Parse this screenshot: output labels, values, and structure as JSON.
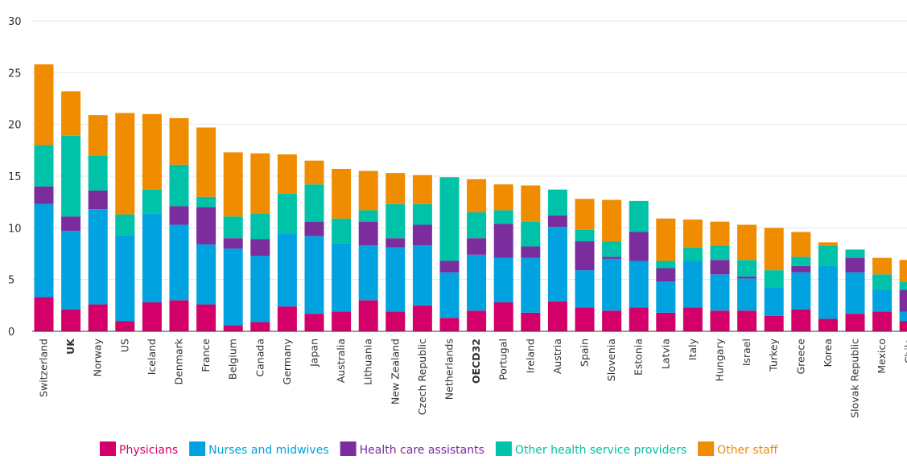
{
  "chart_data": {
    "type": "bar",
    "stacked": true,
    "ylim": [
      0,
      30
    ],
    "yticks": [
      0,
      5,
      10,
      15,
      20,
      25,
      30
    ],
    "grid": true,
    "legend_position": "bottom",
    "categories": [
      "Switzerland",
      "UK",
      "Norway",
      "US",
      "Iceland",
      "Denmark",
      "France",
      "Belgium",
      "Canada",
      "Germany",
      "Japan",
      "Australia",
      "Lithuania",
      "New Zealand",
      "Czech Republic",
      "Netherlands",
      "OECD32",
      "Portugal",
      "Ireland",
      "Austria",
      "Spain",
      "Slovenia",
      "Estonia",
      "Latvia",
      "Italy",
      "Hungary",
      "Israel",
      "Turkey",
      "Greece",
      "Korea",
      "Slovak Republic",
      "Mexico",
      "Chile"
    ],
    "bold_categories": [
      "UK",
      "OECD32"
    ],
    "series": [
      {
        "name": "Physicians",
        "color": "#d4006a",
        "values": [
          3.3,
          2.1,
          2.6,
          1.0,
          2.8,
          3.0,
          2.6,
          0.6,
          0.9,
          2.4,
          1.7,
          1.9,
          3.0,
          1.9,
          2.5,
          1.3,
          2.0,
          2.8,
          1.8,
          2.9,
          2.3,
          2.0,
          2.3,
          1.8,
          2.3,
          2.0,
          2.0,
          1.5,
          2.1,
          1.2,
          1.7,
          1.9,
          1.0
        ]
      },
      {
        "name": "Nurses and midwives",
        "color": "#00a3e0",
        "values": [
          9.0,
          7.6,
          9.2,
          8.3,
          8.6,
          7.3,
          5.8,
          7.4,
          6.4,
          7.0,
          7.5,
          6.6,
          5.3,
          6.2,
          5.8,
          4.4,
          5.4,
          4.3,
          5.3,
          7.2,
          3.6,
          5.0,
          4.5,
          3.0,
          4.5,
          3.5,
          3.1,
          2.7,
          3.6,
          5.1,
          4.0,
          2.1,
          0.9
        ]
      },
      {
        "name": "Health care assistants",
        "color": "#7b2d9e",
        "values": [
          1.7,
          1.4,
          1.8,
          0.0,
          0.0,
          1.8,
          3.6,
          1.0,
          1.6,
          0.0,
          1.4,
          0.0,
          2.3,
          0.9,
          2.0,
          1.1,
          1.6,
          3.3,
          1.1,
          1.1,
          2.8,
          0.2,
          2.8,
          1.3,
          0.0,
          1.4,
          0.2,
          0.0,
          0.6,
          0.0,
          1.4,
          0.0,
          2.1
        ]
      },
      {
        "name": "Other health service providers",
        "color": "#00c2a8",
        "values": [
          4.0,
          7.8,
          3.4,
          2.0,
          2.3,
          4.0,
          1.0,
          2.1,
          2.5,
          3.9,
          3.6,
          2.4,
          1.1,
          3.3,
          2.0,
          8.1,
          2.5,
          1.3,
          2.4,
          2.5,
          1.1,
          1.5,
          3.0,
          0.7,
          1.3,
          1.4,
          1.6,
          1.7,
          0.9,
          2.0,
          0.8,
          1.5,
          0.8
        ]
      },
      {
        "name": "Other staff",
        "color": "#f08c00",
        "values": [
          7.8,
          4.3,
          3.9,
          9.8,
          7.3,
          4.5,
          6.7,
          6.2,
          5.8,
          3.8,
          2.3,
          4.8,
          3.8,
          3.0,
          2.8,
          0.0,
          3.2,
          2.5,
          3.5,
          0.0,
          3.0,
          4.0,
          0.0,
          4.1,
          2.7,
          2.3,
          3.4,
          4.1,
          2.4,
          0.3,
          0.0,
          1.6,
          2.1
        ]
      }
    ]
  }
}
